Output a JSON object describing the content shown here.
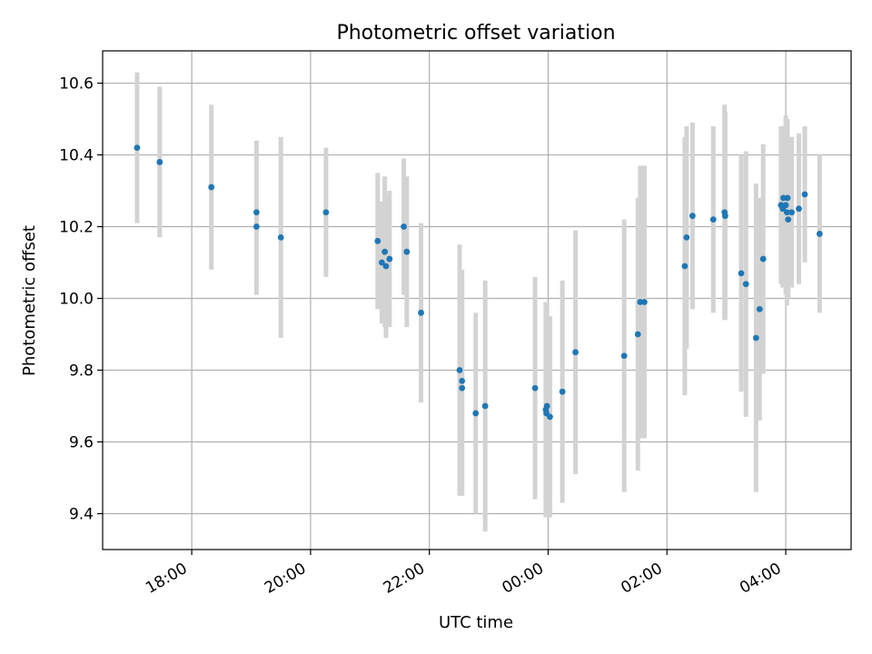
{
  "chart_data": {
    "type": "scatter",
    "title": "Photometric offset variation",
    "xlabel": "UTC time",
    "ylabel": "Photometric offset",
    "x_unit": "hours since 00:00 UTC (negative = previous day)",
    "xlim": [
      -7.5,
      5.1
    ],
    "ylim": [
      9.3,
      10.69
    ],
    "grid": true,
    "legend": "none",
    "x_ticks": [
      {
        "value": -6,
        "label": "18:00"
      },
      {
        "value": -4,
        "label": "20:00"
      },
      {
        "value": -2,
        "label": "22:00"
      },
      {
        "value": 0,
        "label": "00:00"
      },
      {
        "value": 2,
        "label": "02:00"
      },
      {
        "value": 4,
        "label": "04:00"
      }
    ],
    "y_ticks": [
      {
        "value": 9.4,
        "label": "9.4"
      },
      {
        "value": 9.6,
        "label": "9.6"
      },
      {
        "value": 9.8,
        "label": "9.8"
      },
      {
        "value": 10.0,
        "label": "10.0"
      },
      {
        "value": 10.2,
        "label": "10.2"
      },
      {
        "value": 10.4,
        "label": "10.4"
      },
      {
        "value": 10.6,
        "label": "10.6"
      }
    ],
    "series": [
      {
        "name": "offset",
        "marker_color": "#1f77b4",
        "errorbar_color": "#d3d3d3",
        "points": [
          {
            "x": -6.92,
            "y": 10.42,
            "err": 0.21
          },
          {
            "x": -6.54,
            "y": 10.38,
            "err": 0.21
          },
          {
            "x": -5.67,
            "y": 10.31,
            "err": 0.23
          },
          {
            "x": -4.91,
            "y": 10.24,
            "err": 0.2
          },
          {
            "x": -4.91,
            "y": 10.2,
            "err": 0.19
          },
          {
            "x": -4.5,
            "y": 10.17,
            "err": 0.28
          },
          {
            "x": -3.74,
            "y": 10.24,
            "err": 0.18
          },
          {
            "x": -2.87,
            "y": 10.16,
            "err": 0.19
          },
          {
            "x": -2.8,
            "y": 10.1,
            "err": 0.17
          },
          {
            "x": -2.75,
            "y": 10.13,
            "err": 0.21
          },
          {
            "x": -2.73,
            "y": 10.09,
            "err": 0.2
          },
          {
            "x": -2.67,
            "y": 10.11,
            "err": 0.19
          },
          {
            "x": -2.43,
            "y": 10.2,
            "err": 0.19
          },
          {
            "x": -2.38,
            "y": 10.13,
            "err": 0.21
          },
          {
            "x": -2.14,
            "y": 9.96,
            "err": 0.25
          },
          {
            "x": -1.49,
            "y": 9.8,
            "err": 0.35
          },
          {
            "x": -1.45,
            "y": 9.77,
            "err": 0.31
          },
          {
            "x": -1.45,
            "y": 9.75,
            "err": 0.3
          },
          {
            "x": -1.22,
            "y": 9.68,
            "err": 0.28
          },
          {
            "x": -1.06,
            "y": 9.7,
            "err": 0.35
          },
          {
            "x": -0.22,
            "y": 9.75,
            "err": 0.31
          },
          {
            "x": -0.04,
            "y": 9.69,
            "err": 0.3
          },
          {
            "x": -0.02,
            "y": 9.7,
            "err": 0.29
          },
          {
            "x": -0.03,
            "y": 9.68,
            "err": 0.29
          },
          {
            "x": 0.03,
            "y": 9.67,
            "err": 0.28
          },
          {
            "x": 0.24,
            "y": 9.74,
            "err": 0.31
          },
          {
            "x": 0.46,
            "y": 9.85,
            "err": 0.34
          },
          {
            "x": 1.28,
            "y": 9.84,
            "err": 0.38
          },
          {
            "x": 1.51,
            "y": 9.9,
            "err": 0.38
          },
          {
            "x": 1.55,
            "y": 9.99,
            "err": 0.38
          },
          {
            "x": 1.62,
            "y": 9.99,
            "err": 0.38
          },
          {
            "x": 2.3,
            "y": 10.09,
            "err": 0.36
          },
          {
            "x": 2.33,
            "y": 10.17,
            "err": 0.31
          },
          {
            "x": 2.43,
            "y": 10.23,
            "err": 0.26
          },
          {
            "x": 2.78,
            "y": 10.22,
            "err": 0.26
          },
          {
            "x": 2.97,
            "y": 10.24,
            "err": 0.3
          },
          {
            "x": 2.98,
            "y": 10.23,
            "err": 0.29
          },
          {
            "x": 3.25,
            "y": 10.07,
            "err": 0.33
          },
          {
            "x": 3.33,
            "y": 10.04,
            "err": 0.37
          },
          {
            "x": 3.5,
            "y": 9.89,
            "err": 0.43
          },
          {
            "x": 3.56,
            "y": 9.97,
            "err": 0.31
          },
          {
            "x": 3.62,
            "y": 10.11,
            "err": 0.32
          },
          {
            "x": 3.92,
            "y": 10.26,
            "err": 0.22
          },
          {
            "x": 3.95,
            "y": 10.25,
            "err": 0.22
          },
          {
            "x": 3.96,
            "y": 10.28,
            "err": 0.2
          },
          {
            "x": 4.0,
            "y": 10.26,
            "err": 0.25
          },
          {
            "x": 4.02,
            "y": 10.24,
            "err": 0.26
          },
          {
            "x": 4.03,
            "y": 10.28,
            "err": 0.22
          },
          {
            "x": 4.04,
            "y": 10.22,
            "err": 0.22
          },
          {
            "x": 4.1,
            "y": 10.24,
            "err": 0.21
          },
          {
            "x": 4.22,
            "y": 10.25,
            "err": 0.21
          },
          {
            "x": 4.32,
            "y": 10.29,
            "err": 0.19
          },
          {
            "x": 4.57,
            "y": 10.18,
            "err": 0.22
          }
        ]
      }
    ]
  }
}
